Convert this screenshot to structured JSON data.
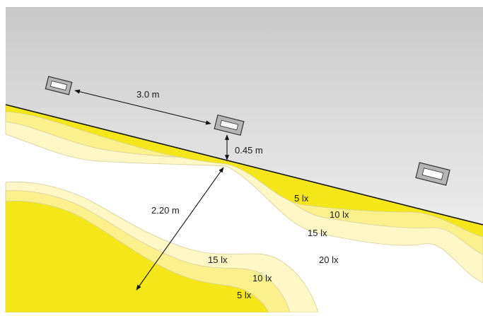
{
  "colors": {
    "wall_top": "#c9c9c9",
    "wall_bottom": "#ececec",
    "floor_bright": "#f5e61a",
    "band_light": "#fbf08c",
    "band_pale": "#fdf7c6",
    "background": "#ffffff",
    "luminaire_frame": "#b5b5b5",
    "line": "#111111"
  },
  "luminaires": [
    {
      "name": "luminaire-left"
    },
    {
      "name": "luminaire-center"
    },
    {
      "name": "luminaire-right"
    }
  ],
  "dimensions": {
    "spacing": "3.0 m",
    "height_above_floor": "0.45 m",
    "light_spread": "2.20 m"
  },
  "isolux": {
    "upper": [
      "5 lx",
      "10 lx",
      "15 lx"
    ],
    "center": "20 lx",
    "lower": [
      "15 lx",
      "10 lx",
      "5 lx"
    ]
  }
}
